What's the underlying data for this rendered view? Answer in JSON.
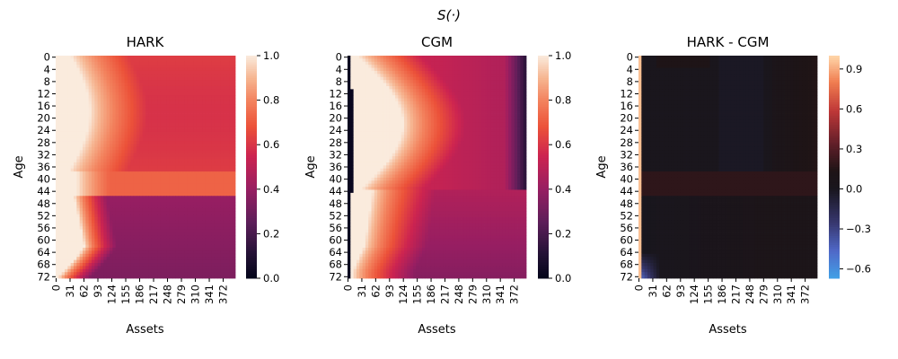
{
  "suptitle": "S(·)",
  "chart_data": [
    {
      "type": "heatmap",
      "title": "HARK",
      "xlabel": "Assets",
      "ylabel": "Age",
      "x_tick_labels": [
        "0",
        "31",
        "62",
        "93",
        "124",
        "155",
        "186",
        "217",
        "248",
        "279",
        "310",
        "341",
        "372"
      ],
      "y_tick_labels": [
        "0",
        "4",
        "8",
        "12",
        "16",
        "20",
        "24",
        "28",
        "32",
        "36",
        "40",
        "44",
        "48",
        "52",
        "56",
        "60",
        "64",
        "68",
        "72"
      ],
      "colorbar": {
        "min": 0.0,
        "max": 1.0,
        "ticks": [
          "0.0",
          "0.2",
          "0.4",
          "0.6",
          "0.8",
          "1.0"
        ],
        "colormap": "rocket"
      }
    },
    {
      "type": "heatmap",
      "title": "CGM",
      "xlabel": "Assets",
      "ylabel": "Age",
      "x_tick_labels": [
        "0",
        "31",
        "62",
        "93",
        "124",
        "155",
        "186",
        "217",
        "248",
        "279",
        "310",
        "341",
        "372"
      ],
      "y_tick_labels": [
        "0",
        "4",
        "8",
        "12",
        "16",
        "20",
        "24",
        "28",
        "32",
        "36",
        "40",
        "44",
        "48",
        "52",
        "56",
        "60",
        "64",
        "68",
        "72"
      ],
      "colorbar": {
        "min": 0.0,
        "max": 1.0,
        "ticks": [
          "0.0",
          "0.2",
          "0.4",
          "0.6",
          "0.8",
          "1.0"
        ],
        "colormap": "rocket"
      }
    },
    {
      "type": "heatmap",
      "title": "HARK - CGM",
      "xlabel": "Assets",
      "ylabel": "Age",
      "x_tick_labels": [
        "0",
        "31",
        "62",
        "93",
        "124",
        "155",
        "186",
        "217",
        "248",
        "279",
        "310",
        "341",
        "372"
      ],
      "y_tick_labels": [
        "0",
        "4",
        "8",
        "12",
        "16",
        "20",
        "24",
        "28",
        "32",
        "36",
        "40",
        "44",
        "48",
        "52",
        "56",
        "60",
        "64",
        "68",
        "72"
      ],
      "colorbar": {
        "min": -0.67,
        "max": 1.0,
        "ticks": [
          "−0.6",
          "−0.3",
          "0.0",
          "0.3",
          "0.6",
          "0.9"
        ],
        "colormap": "icefire"
      }
    }
  ]
}
